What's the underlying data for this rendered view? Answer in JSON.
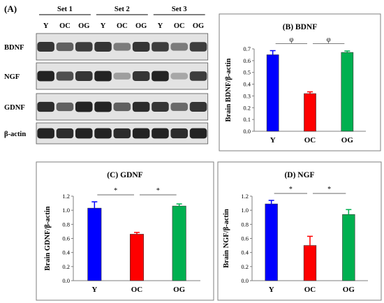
{
  "figure": {
    "panel_a_label": "(A)",
    "blot": {
      "sets": [
        "Set 1",
        "Set 2",
        "Set 3"
      ],
      "lanes": [
        "Y",
        "OC",
        "OG",
        "Y",
        "OC",
        "OG",
        "Y",
        "OC",
        "OG"
      ],
      "rows": [
        {
          "label": "BDNF",
          "intensity": [
            0.85,
            0.6,
            0.8,
            0.85,
            0.45,
            0.85,
            0.8,
            0.45,
            0.8
          ]
        },
        {
          "label": "NGF",
          "intensity": [
            0.95,
            0.7,
            0.85,
            0.95,
            0.25,
            0.85,
            0.95,
            0.2,
            0.8
          ]
        },
        {
          "label": "GDNF",
          "intensity": [
            0.9,
            0.6,
            0.95,
            0.95,
            0.6,
            0.9,
            0.85,
            0.55,
            0.85
          ]
        },
        {
          "label": "β-actin",
          "intensity": [
            0.95,
            0.9,
            0.95,
            0.95,
            0.9,
            0.95,
            0.95,
            0.9,
            0.95
          ]
        }
      ]
    },
    "colors": {
      "Y": "#0000ff",
      "OC": "#ff0000",
      "OG": "#00b050"
    }
  },
  "chart_data": [
    {
      "type": "bar",
      "title": "(B) BDNF",
      "ylabel": "Brain BDNF/β-actin",
      "xlabel": "",
      "categories": [
        "Y",
        "OC",
        "OG"
      ],
      "values": [
        0.65,
        0.32,
        0.67
      ],
      "errors": [
        0.035,
        0.015,
        0.012
      ],
      "ylim": [
        0,
        0.7
      ],
      "yticks": [
        "0.0",
        "0.1",
        "0.2",
        "0.3",
        "0.4",
        "0.5",
        "0.6",
        "0.7"
      ],
      "significance": [
        "φ",
        "φ"
      ],
      "grid": false
    },
    {
      "type": "bar",
      "title": "(C) GDNF",
      "ylabel": "Brain GDNF/β-actin",
      "xlabel": "",
      "categories": [
        "Y",
        "OC",
        "OG"
      ],
      "values": [
        1.03,
        0.66,
        1.06
      ],
      "errors": [
        0.09,
        0.025,
        0.03
      ],
      "ylim": [
        0,
        1.2
      ],
      "yticks": [
        "0.0",
        "0.2",
        "0.4",
        "0.6",
        "0.8",
        "1.0",
        "1.2"
      ],
      "significance": [
        "*",
        "*"
      ],
      "grid": false
    },
    {
      "type": "bar",
      "title": "(D) NGF",
      "ylabel": "Brain NGF/β-actin",
      "xlabel": "",
      "categories": [
        "Y",
        "OC",
        "OG"
      ],
      "values": [
        1.09,
        0.5,
        0.94
      ],
      "errors": [
        0.05,
        0.13,
        0.07
      ],
      "ylim": [
        0,
        1.2
      ],
      "yticks": [
        "0.0",
        "0.2",
        "0.4",
        "0.6",
        "0.8",
        "1.0",
        "1.2"
      ],
      "significance": [
        "*",
        "*"
      ],
      "grid": false
    }
  ]
}
